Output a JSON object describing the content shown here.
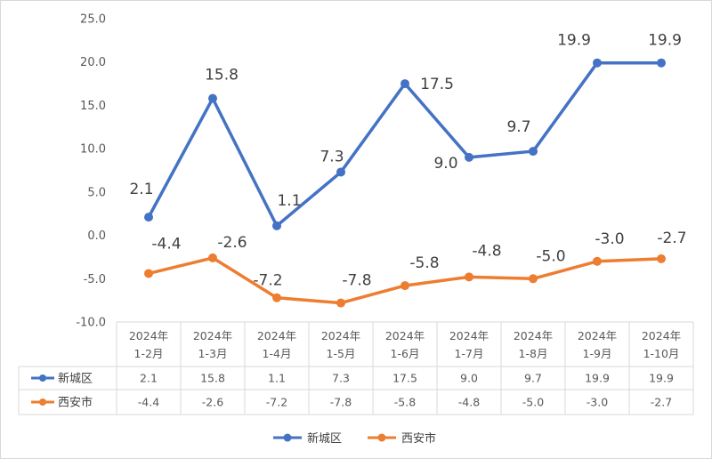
{
  "chart_data": {
    "type": "line",
    "categories": [
      [
        "2024年",
        "1-2月"
      ],
      [
        "2024年",
        "1-3月"
      ],
      [
        "2024年",
        "1-4月"
      ],
      [
        "2024年",
        "1-5月"
      ],
      [
        "2024年",
        "1-6月"
      ],
      [
        "2024年",
        "1-7月"
      ],
      [
        "2024年",
        "1-8月"
      ],
      [
        "2024年",
        "1-9月"
      ],
      [
        "2024年",
        "1-10月"
      ]
    ],
    "ylim": [
      -10,
      25
    ],
    "yticks": [
      "25.0",
      "20.0",
      "15.0",
      "10.0",
      "5.0",
      "0.0",
      "-5.0",
      "-10.0"
    ],
    "series": [
      {
        "name": "新城区",
        "color": "#4472c4",
        "values": [
          2.1,
          15.8,
          1.1,
          7.3,
          17.5,
          9.0,
          9.7,
          19.9,
          19.9
        ],
        "labels": [
          "2.1",
          "15.8",
          "1.1",
          "7.3",
          "17.5",
          "9.0",
          "9.7",
          "19.9",
          "19.9"
        ]
      },
      {
        "name": "西安市",
        "color": "#ed7d31",
        "values": [
          -4.4,
          -2.6,
          -7.2,
          -7.8,
          -5.8,
          -4.8,
          -5.0,
          -3.0,
          -2.7
        ],
        "labels": [
          "-4.4",
          "-2.6",
          "-7.2",
          "-7.8",
          "-5.8",
          "-4.8",
          "-5.0",
          "-3.0",
          "-2.7"
        ]
      }
    ],
    "legend_position": "bottom",
    "data_table": true,
    "grid": false
  }
}
